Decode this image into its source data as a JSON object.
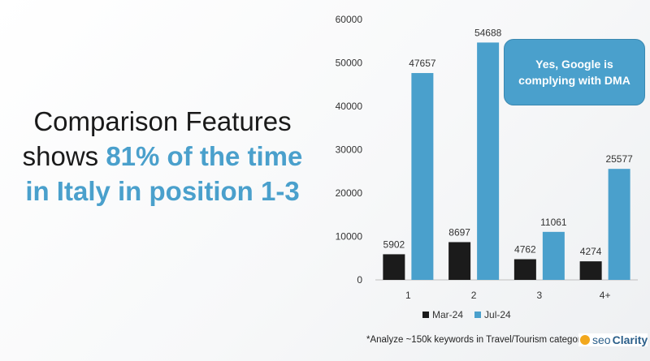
{
  "headline": {
    "line1": "Comparison Features",
    "line2_prefix": "shows ",
    "line2_highlight": "81% of the time",
    "line3": "in Italy in position 1-3"
  },
  "callout": {
    "line1": "Yes, Google is",
    "line2": "complying with DMA"
  },
  "footnote": "*Analyze ~150k keywords in Travel/Tourism categor",
  "logo": {
    "text_seo": "seo",
    "text_clarity": "Clarity"
  },
  "chart_data": {
    "type": "bar",
    "categories": [
      "1",
      "2",
      "3",
      "4+"
    ],
    "series": [
      {
        "name": "Mar-24",
        "values": [
          5902,
          8697,
          4762,
          4274
        ],
        "color": "#1b1b1b"
      },
      {
        "name": "Jul-24",
        "values": [
          47657,
          54688,
          11061,
          25577
        ],
        "color": "#4aa0cc"
      }
    ],
    "ylim": [
      0,
      60000
    ],
    "yticks": [
      0,
      10000,
      20000,
      30000,
      40000,
      50000,
      60000
    ],
    "xlabel": "",
    "ylabel": "",
    "grid": false,
    "legend_position": "bottom"
  }
}
